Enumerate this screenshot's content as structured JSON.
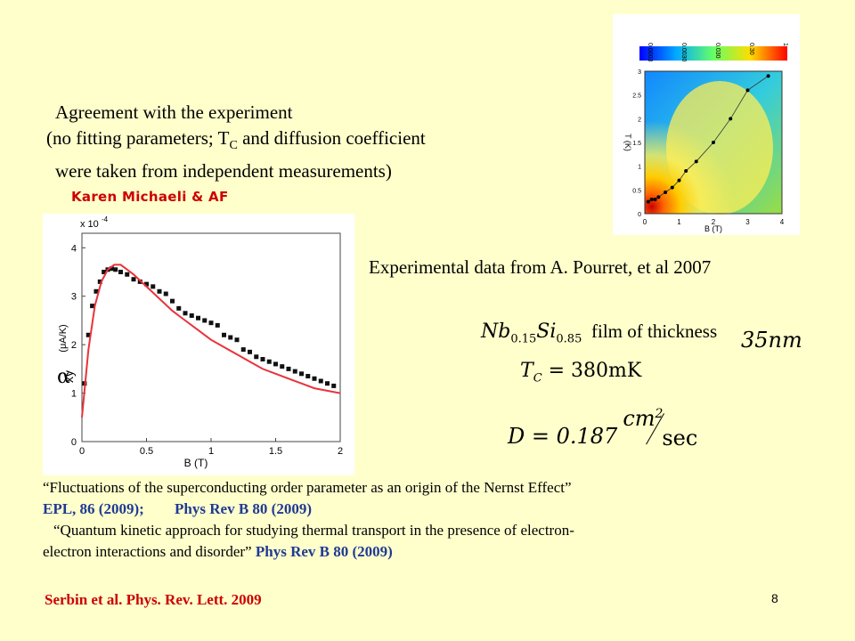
{
  "headline": {
    "line1": "Agreement with the experiment",
    "line2_a": "(no fitting parameters;  T",
    "line2_sub": "C",
    "line2_b": " and diffusion coefficient",
    "line3": "were taken from independent measurements)"
  },
  "author": "Karen Michaeli & AF",
  "experimental": "Experimental data from A. Pourret, et al 2007",
  "material": {
    "nb": "Nb",
    "nb_sub": "0.15",
    "si": "Si",
    "si_sub": "0.85",
    "film_text": "film of thickness",
    "thickness": "35nm"
  },
  "tc": {
    "symbol": "T",
    "sub": "C",
    "rest": " = 380mK"
  },
  "diffusion": {
    "lhs": "D = 0.187",
    "num": "cm",
    "exp": "2",
    "den": "sec"
  },
  "refs": {
    "r1": "“Fluctuations of the superconducting order parameter   as an origin of the Nernst Effect”",
    "r2a": "EPL, 86  (2009);",
    "r2b": "Phys Rev B 80 (2009)",
    "r3": "“Quantum kinetic approach for studying thermal transport in the presence of electron-",
    "r4": "electron interactions and disorder”",
    "r4b": "Phys Rev B 80 (2009)"
  },
  "serbin": "Serbin et al. Phys. Rev. Lett. 2009",
  "page_number": "8",
  "colors": {
    "background": "#ffffcc",
    "accent_red": "#cc0000",
    "ref_blue": "#1f3a93",
    "curve": "#e8333a"
  },
  "chart_data": [
    {
      "type": "scatter",
      "title": "",
      "xlabel": "B (T)",
      "ylabel": "(μA/K)",
      "ylabel_symbol": "α",
      "ylabel_sub": "xy",
      "y_multiplier": "x 10",
      "y_multiplier_exp": "-4",
      "xlim": [
        0,
        2
      ],
      "ylim": [
        0,
        4.3
      ],
      "xticks": [
        "0",
        "0.5",
        "1",
        "1.5",
        "2"
      ],
      "yticks": [
        "0",
        "1",
        "2",
        "3",
        "4"
      ],
      "grid": false,
      "series": [
        {
          "kind": "points",
          "x": [
            0.02,
            0.05,
            0.08,
            0.11,
            0.14,
            0.17,
            0.2,
            0.23,
            0.26,
            0.3,
            0.35,
            0.4,
            0.45,
            0.5,
            0.55,
            0.6,
            0.65,
            0.7,
            0.75,
            0.8,
            0.85,
            0.9,
            0.95,
            1.0,
            1.05,
            1.1,
            1.15,
            1.2,
            1.25,
            1.3,
            1.35,
            1.4,
            1.45,
            1.5,
            1.55,
            1.6,
            1.65,
            1.7,
            1.75,
            1.8,
            1.85,
            1.9,
            1.95
          ],
          "y": [
            1.2,
            2.2,
            2.8,
            3.1,
            3.3,
            3.5,
            3.55,
            3.57,
            3.55,
            3.5,
            3.45,
            3.35,
            3.3,
            3.25,
            3.2,
            3.1,
            3.05,
            2.9,
            2.75,
            2.65,
            2.6,
            2.55,
            2.5,
            2.45,
            2.4,
            2.2,
            2.15,
            2.1,
            1.9,
            1.85,
            1.75,
            1.7,
            1.65,
            1.6,
            1.55,
            1.5,
            1.45,
            1.4,
            1.35,
            1.3,
            1.25,
            1.2,
            1.15
          ]
        },
        {
          "kind": "line",
          "x": [
            0,
            0.05,
            0.1,
            0.15,
            0.2,
            0.25,
            0.3,
            0.35,
            0.4,
            0.5,
            0.6,
            0.7,
            0.8,
            0.9,
            1.0,
            1.1,
            1.2,
            1.3,
            1.4,
            1.5,
            1.6,
            1.7,
            1.8,
            1.9,
            2.0
          ],
          "y": [
            0.5,
            1.9,
            2.8,
            3.3,
            3.55,
            3.65,
            3.65,
            3.55,
            3.45,
            3.2,
            2.95,
            2.7,
            2.5,
            2.3,
            2.1,
            1.95,
            1.8,
            1.65,
            1.5,
            1.4,
            1.3,
            1.2,
            1.1,
            1.05,
            1.0
          ]
        }
      ]
    },
    {
      "type": "heatmap",
      "title": "",
      "xlabel": "B (T)",
      "ylabel": "T (K)",
      "xticks": [
        "0",
        "1",
        "2",
        "3",
        "4"
      ],
      "yticks": [
        "0",
        "0.5",
        "1",
        "1.5",
        "2",
        "2.5",
        "3"
      ],
      "colorbar_ticks": [
        "0.0003",
        "0.0030",
        "0.030",
        "0.30",
        "1"
      ],
      "xlim": [
        0,
        4
      ],
      "ylim": [
        0,
        3
      ],
      "series": [
        {
          "kind": "points",
          "x": [
            0.1,
            0.2,
            0.3,
            0.4,
            0.6,
            0.8,
            1.0,
            1.2,
            1.5,
            2.0,
            2.5,
            3.0,
            3.6
          ],
          "y": [
            0.25,
            0.3,
            0.3,
            0.35,
            0.45,
            0.55,
            0.7,
            0.9,
            1.1,
            1.5,
            2.0,
            2.6,
            2.9
          ]
        }
      ]
    }
  ]
}
